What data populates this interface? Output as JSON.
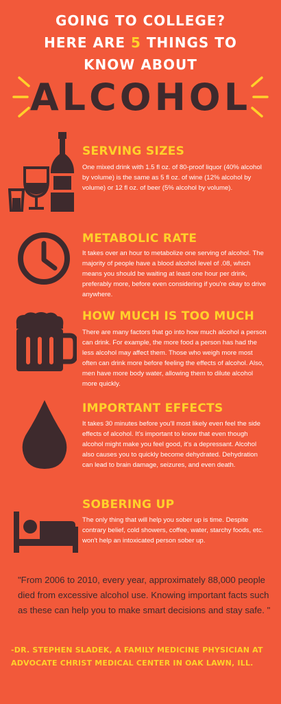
{
  "header": {
    "line1": "GOING TO COLLEGE?",
    "line2_pre": "HERE ARE ",
    "line2_num": "5",
    "line2_post": " THINGS TO",
    "line3": "KNOW ABOUT",
    "main_word": "ALCOHOL"
  },
  "sections": [
    {
      "heading": "SERVING SIZES",
      "text": "One mixed drink with 1.5 fl oz. of 80-proof liquor (40% alcohol by volume) is the same as 5 fl oz. of wine (12% alcohol by volume) or 12 fl oz. of beer (5% alcohol by volume).",
      "icon": "drinks-icon"
    },
    {
      "heading": "METABOLIC RATE",
      "text": "It takes over an hour to metabolize one serving of alcohol. The majority of people have a blood alcohol level of .08, which means you should be waiting at least one hour per drink, preferably more, before even considering if you're okay to drive anywhere.",
      "icon": "clock-icon"
    },
    {
      "heading": "HOW MUCH IS TOO MUCH",
      "text": "There are many factors that go into how much alcohol a person can drink. For example, the more food a person has had the less alcohol may affect them. Those who weigh more most often can drink more before feeling the effects of alcohol. Also, men have more body water, allowing them to dilute alcohol more quickly.",
      "icon": "beer-mug-icon"
    },
    {
      "heading": "IMPORTANT EFFECTS",
      "text": "It takes 30 minutes before you'll most likely even feel the side effects of alcohol. It's important to know that even though alcohol might make you feel good, it's a depressant. Alcohol also causes you to quickly become dehydrated. Dehydration can lead to brain damage, seizures, and even death.",
      "icon": "drop-icon"
    },
    {
      "heading": "SOBERING UP",
      "text": "The only thing that will help you sober up is time. Despite contrary belief, cold showers, coffee, water, starchy foods, etc. won't help an intoxicated person sober up.",
      "icon": "bed-icon"
    }
  ],
  "quote": "\"From 2006 to 2010, every year, approximately 88,000 people died from excessive alcohol use. Knowing important facts such as these can help you to make smart decisions and stay safe. \"",
  "attribution": "-DR. STEPHEN SLADEK, A  FAMILY MEDICINE PHYSICIAN AT ADVOCATE CHRIST MEDICAL CENTER IN OAK LAWN, ILL.",
  "colors": {
    "background": "#f2593a",
    "accent": "#ffd12b",
    "dark": "#3e2a2d",
    "text": "#ffffff"
  }
}
